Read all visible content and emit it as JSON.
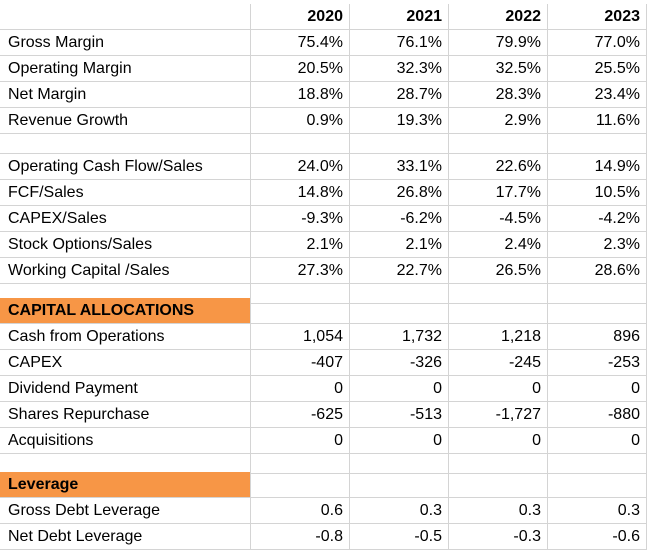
{
  "years": [
    "2020",
    "2021",
    "2022",
    "2023"
  ],
  "ratios": [
    {
      "label": "Gross Margin",
      "values": [
        "75.4%",
        "76.1%",
        "79.9%",
        "77.0%"
      ]
    },
    {
      "label": "Operating Margin",
      "values": [
        "20.5%",
        "32.3%",
        "32.5%",
        "25.5%"
      ]
    },
    {
      "label": "Net Margin",
      "values": [
        "18.8%",
        "28.7%",
        "28.3%",
        "23.4%"
      ]
    },
    {
      "label": "Revenue Growth",
      "values": [
        "0.9%",
        "19.3%",
        "2.9%",
        "11.6%"
      ]
    }
  ],
  "cash_ratios": [
    {
      "label": "Operating Cash Flow/Sales",
      "values": [
        "24.0%",
        "33.1%",
        "22.6%",
        "14.9%"
      ]
    },
    {
      "label": "FCF/Sales",
      "values": [
        "14.8%",
        "26.8%",
        "17.7%",
        "10.5%"
      ]
    },
    {
      "label": "CAPEX/Sales",
      "values": [
        "-9.3%",
        "-6.2%",
        "-4.5%",
        "-4.2%"
      ]
    },
    {
      "label": "Stock Options/Sales",
      "values": [
        "2.1%",
        "2.1%",
        "2.4%",
        "2.3%"
      ]
    },
    {
      "label": "Working Capital /Sales",
      "values": [
        "27.3%",
        "22.7%",
        "26.5%",
        "28.6%"
      ]
    }
  ],
  "capital_allocations": {
    "title": "CAPITAL ALLOCATIONS",
    "rows": [
      {
        "label": "Cash from Operations",
        "values": [
          "1,054",
          "1,732",
          "1,218",
          "896"
        ]
      },
      {
        "label": "CAPEX",
        "values": [
          "-407",
          "-326",
          "-245",
          "-253"
        ]
      },
      {
        "label": "Dividend Payment",
        "values": [
          "0",
          "0",
          "0",
          "0"
        ]
      },
      {
        "label": "Shares Repurchase",
        "values": [
          "-625",
          "-513",
          "-1,727",
          "-880"
        ]
      },
      {
        "label": "Acquisitions",
        "values": [
          "0",
          "0",
          "0",
          "0"
        ]
      }
    ]
  },
  "leverage": {
    "title": "Leverage",
    "rows": [
      {
        "label": "Gross Debt Leverage",
        "values": [
          "0.6",
          "0.3",
          "0.3",
          "0.3"
        ]
      },
      {
        "label": "Net Debt Leverage",
        "values": [
          "-0.8",
          "-0.5",
          "-0.3",
          "-0.6"
        ]
      }
    ]
  },
  "section_color": "#f79646"
}
